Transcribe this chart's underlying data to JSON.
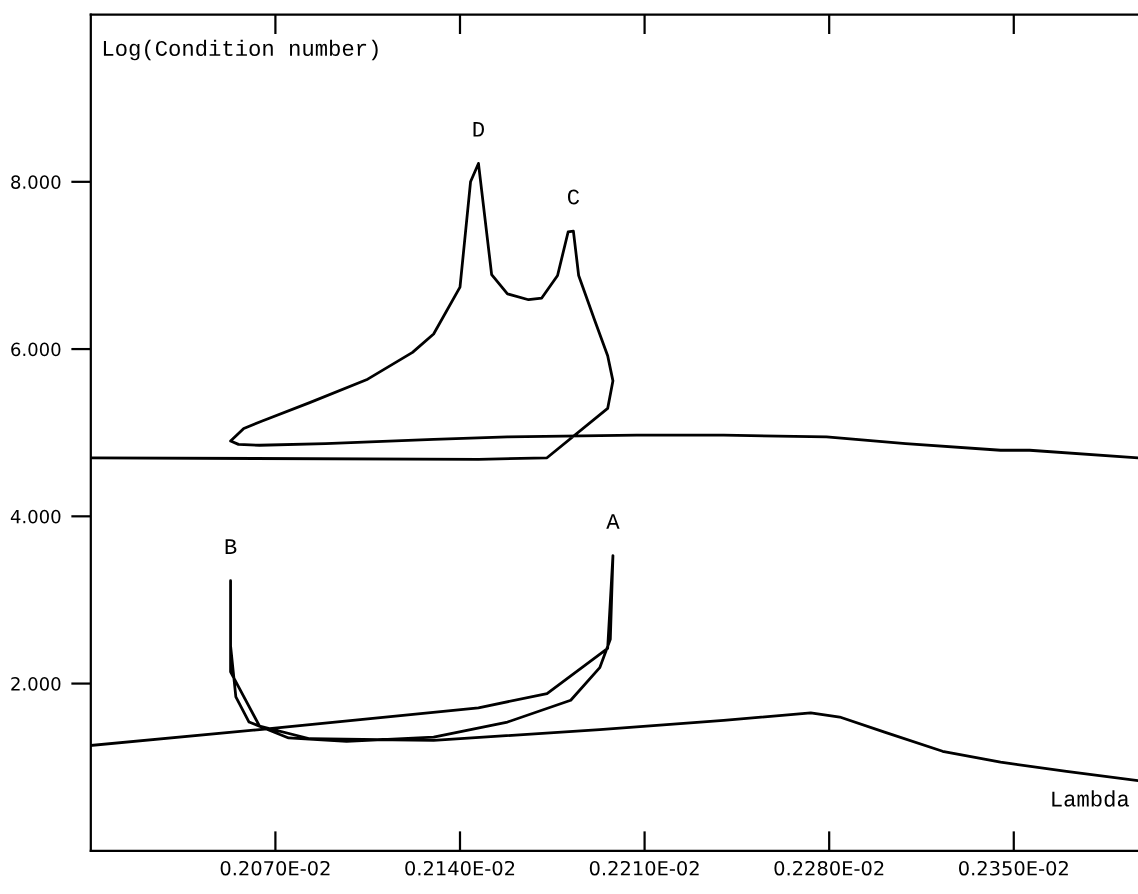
{
  "chart_data": {
    "type": "line",
    "xlabel": "Lambda",
    "ylabel": "Log(Condition number)",
    "xlim": [
      0.002,
      0.0024
    ],
    "ylim": [
      0,
      10
    ],
    "xticks": [
      {
        "value": 0.00207,
        "label": "0.2070E-02"
      },
      {
        "value": 0.00214,
        "label": "0.2140E-02"
      },
      {
        "value": 0.00221,
        "label": "0.2210E-02"
      },
      {
        "value": 0.00228,
        "label": "0.2280E-02"
      },
      {
        "value": 0.00235,
        "label": "0.2350E-02"
      }
    ],
    "yticks": [
      {
        "value": 2,
        "label": "2.000"
      },
      {
        "value": 4,
        "label": "4.000"
      },
      {
        "value": 6,
        "label": "6.000"
      },
      {
        "value": 8,
        "label": "8.000"
      }
    ],
    "grid": false,
    "legend": false,
    "marker": "none",
    "line_style": "solid",
    "series": [
      {
        "color": "#000000",
        "x": [
          0.002,
          0.002147,
          0.002173,
          0.002196,
          0.002198,
          0.002196,
          0.002191,
          0.002185,
          0.002183,
          0.002181,
          0.002177,
          0.002171,
          0.002166,
          0.002158,
          0.002152,
          0.002147,
          0.002144,
          0.00214,
          0.00213,
          0.002122,
          0.002105,
          0.002083,
          0.002065,
          0.002058,
          0.002053,
          0.002056,
          0.002064,
          0.002089,
          0.00213,
          0.002158,
          0.002207,
          0.00224,
          0.002279,
          0.002309,
          0.002345,
          0.002356,
          0.002397
        ],
        "values": [
          4.7,
          4.68,
          4.7,
          5.29,
          5.62,
          5.92,
          6.35,
          6.88,
          7.41,
          7.4,
          6.88,
          6.61,
          6.59,
          6.66,
          6.89,
          8.22,
          8.0,
          6.74,
          6.18,
          5.96,
          5.64,
          5.36,
          5.14,
          5.05,
          4.9,
          4.86,
          4.85,
          4.87,
          4.92,
          4.95,
          4.97,
          4.97,
          4.95,
          4.87,
          4.79,
          4.79,
          4.7
        ]
      },
      {
        "color": "#000000",
        "x": [
          0.002,
          0.002064,
          0.002147,
          0.002173,
          0.002196,
          0.002198,
          0.002197,
          0.002193,
          0.002182,
          0.002158,
          0.00213,
          0.002097,
          0.002075,
          0.00206,
          0.002055,
          0.002053,
          0.002053,
          0.002053,
          0.002053,
          0.002064,
          0.002083,
          0.00213,
          0.002193,
          0.00224,
          0.002273,
          0.002284,
          0.002301,
          0.002323,
          0.002345,
          0.00237,
          0.002397
        ],
        "values": [
          1.26,
          1.45,
          1.71,
          1.88,
          2.42,
          3.53,
          2.53,
          2.19,
          1.8,
          1.54,
          1.36,
          1.31,
          1.35,
          1.54,
          1.84,
          2.45,
          3.23,
          2.53,
          2.14,
          1.49,
          1.34,
          1.32,
          1.45,
          1.56,
          1.65,
          1.6,
          1.42,
          1.19,
          1.06,
          0.95,
          0.84
        ]
      }
    ],
    "annotations": [
      {
        "text": "D",
        "x": 0.002147,
        "y": 8.22
      },
      {
        "text": "C",
        "x": 0.002183,
        "y": 7.41
      },
      {
        "text": "B",
        "x": 0.002053,
        "y": 3.23
      },
      {
        "text": "A",
        "x": 0.002198,
        "y": 3.53
      }
    ]
  }
}
